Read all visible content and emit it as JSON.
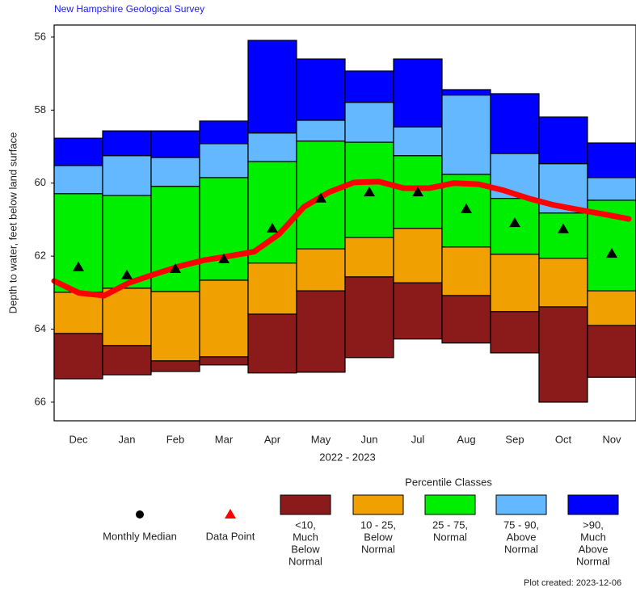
{
  "chart_data": {
    "type": "percentile",
    "source": "New Hampshire Geological Survey",
    "y_label": "Depth to water, feet below land surface",
    "x_label": "2022 - 2023",
    "categories": [
      "Dec",
      "Jan",
      "Feb",
      "Mar",
      "Apr",
      "May",
      "Jun",
      "Jul",
      "Aug",
      "Sep",
      "Oct",
      "Nov"
    ],
    "ylim": [
      55.67,
      66.51
    ],
    "y_inverted": true,
    "yticks": [
      56,
      58,
      60,
      62,
      64,
      66
    ],
    "bounds": {
      "max": [
        58.77,
        58.57,
        58.57,
        58.3,
        56.09,
        56.6,
        56.93,
        56.6,
        57.44,
        57.55,
        58.19,
        58.9
      ],
      "p90": [
        59.52,
        59.25,
        59.3,
        58.92,
        58.63,
        58.28,
        57.79,
        58.46,
        57.59,
        59.19,
        59.47,
        59.85
      ],
      "p75": [
        60.29,
        60.34,
        60.09,
        59.85,
        59.41,
        58.85,
        58.88,
        59.25,
        59.76,
        60.42,
        60.82,
        60.47
      ],
      "p25": [
        62.99,
        62.88,
        62.97,
        62.66,
        62.19,
        61.8,
        61.49,
        61.24,
        61.75,
        61.95,
        62.06,
        62.95
      ],
      "p10": [
        64.12,
        64.45,
        64.87,
        64.76,
        63.59,
        62.95,
        62.57,
        62.73,
        63.08,
        63.52,
        63.39,
        63.9
      ],
      "min": [
        65.36,
        65.25,
        65.16,
        64.98,
        65.2,
        65.18,
        64.78,
        64.27,
        64.38,
        64.65,
        66.0,
        65.32
      ]
    },
    "medians": [
      62.28,
      62.5,
      62.33,
      62.06,
      61.22,
      60.4,
      60.23,
      60.23,
      60.69,
      61.07,
      61.24,
      61.91
    ],
    "data_points": {
      "color": "#ff0000",
      "values": [
        62.68,
        63.01,
        63.08,
        62.73,
        62.5,
        62.28,
        62.11,
        62.0,
        61.88,
        61.4,
        60.65,
        60.25,
        59.98,
        59.96,
        60.14,
        60.14,
        60.0,
        60.03,
        60.2,
        60.42,
        60.6,
        60.73,
        60.85,
        60.98
      ]
    },
    "legend": {
      "median": "Monthly Median",
      "data_point": "Data Point",
      "title": "Percentile Classes",
      "classes": [
        {
          "lines": [
            "<10,",
            "Much",
            "Below",
            "Normal"
          ],
          "color": "#8b1a1a"
        },
        {
          "lines": [
            "10 - 25,",
            "Below",
            "Normal"
          ],
          "color": "#f0a000"
        },
        {
          "lines": [
            "25 - 75,",
            "Normal"
          ],
          "color": "#00ee00"
        },
        {
          "lines": [
            "75 - 90,",
            "Above",
            "Normal"
          ],
          "color": "#63b8ff"
        },
        {
          "lines": [
            ">90,",
            "Much",
            "Above",
            "Normal"
          ],
          "color": "#0000ff"
        }
      ]
    },
    "footer": "Plot created: 2023-12-06"
  }
}
